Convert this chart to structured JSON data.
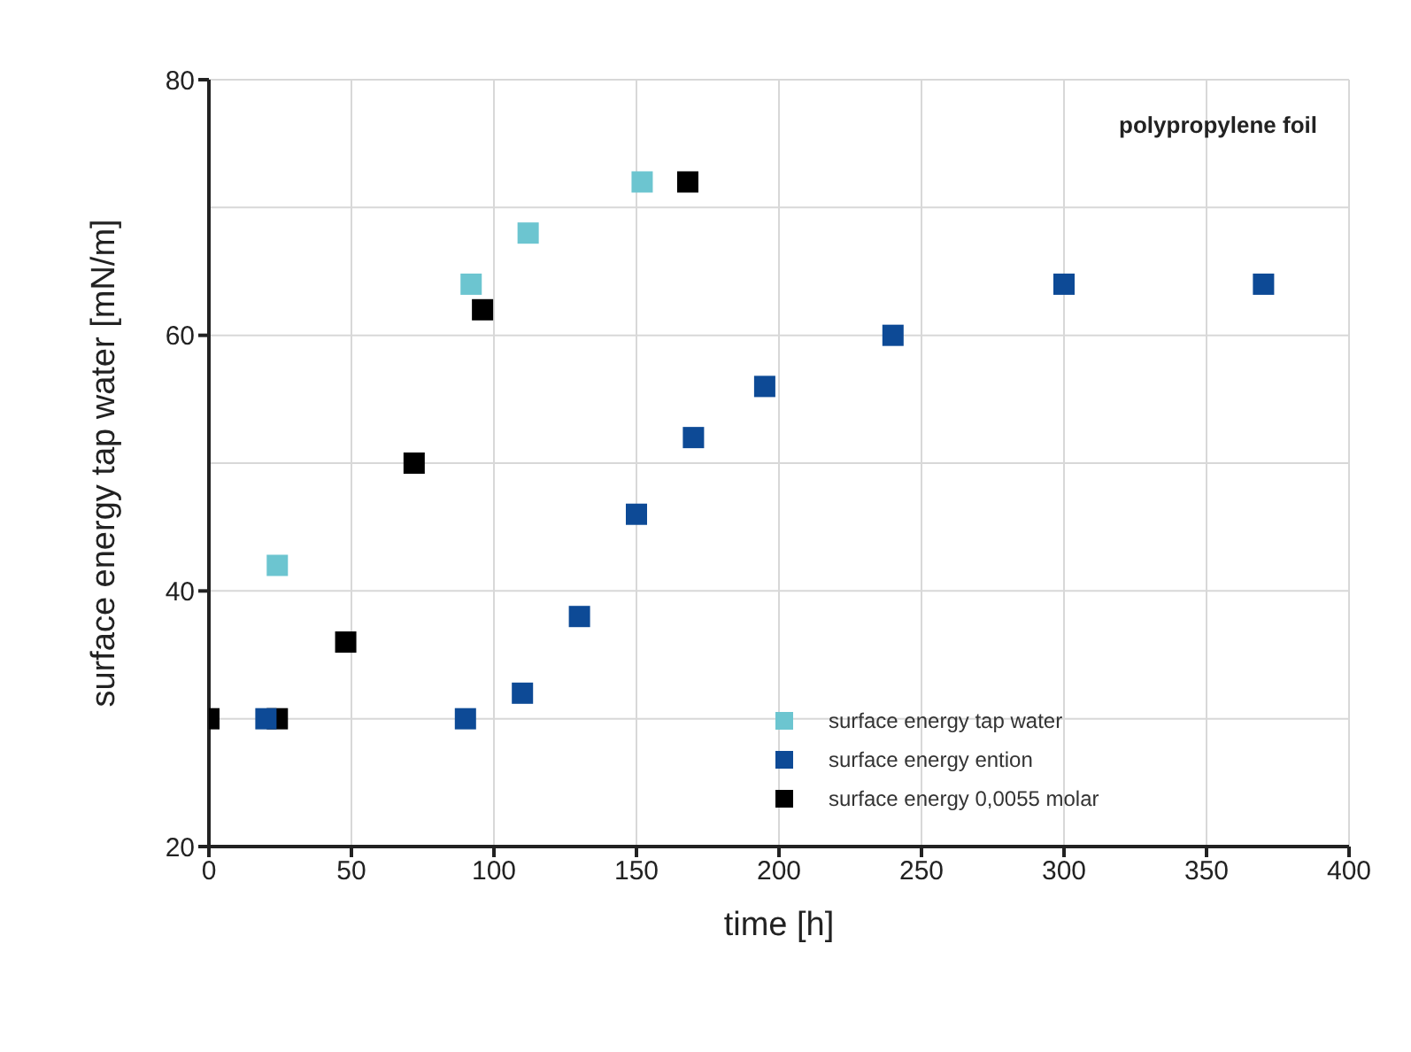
{
  "chart_data": {
    "type": "scatter",
    "xlabel": "time [h]",
    "ylabel": "surface energy tap water [mN/m]",
    "annotations": [
      "polypropylene foil"
    ],
    "xlim": [
      0,
      400
    ],
    "xticks": [
      0,
      50,
      100,
      150,
      200,
      250,
      300,
      350,
      400
    ],
    "ylim": [
      20,
      80
    ],
    "yticks": [
      20,
      40,
      60,
      80
    ],
    "grid": true,
    "legend": "bottom right",
    "marker": "square",
    "series": [
      {
        "name": "surface energy tap water",
        "color": "#6cc5d0",
        "x": [
          24,
          92,
          112,
          152
        ],
        "values": [
          42,
          64,
          68,
          72
        ]
      },
      {
        "name": "surface energy ention",
        "color": "#0d4a96",
        "x": [
          20,
          90,
          110,
          130,
          150,
          170,
          195,
          240,
          300,
          370
        ],
        "values": [
          30,
          30,
          32,
          38,
          46,
          52,
          56,
          60,
          64,
          64
        ]
      },
      {
        "name": "surface energy 0,0055 molar",
        "color": "#000000",
        "x": [
          0,
          24,
          48,
          72,
          96,
          168
        ],
        "values": [
          30,
          30,
          36,
          50,
          62,
          72
        ]
      }
    ]
  }
}
